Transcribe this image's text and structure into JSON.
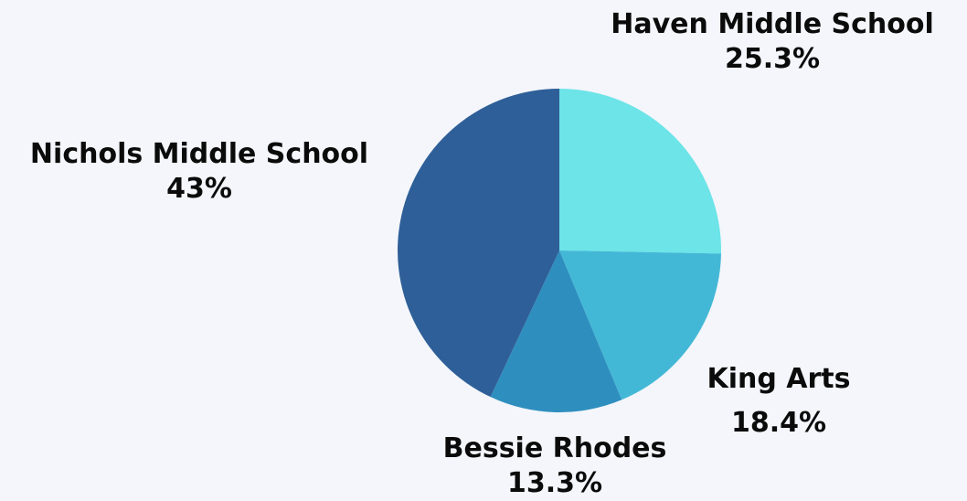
{
  "chart_data": {
    "type": "pie",
    "title": "",
    "slices": [
      {
        "name": "Haven Middle School",
        "value": 25.3,
        "label": "25.3%",
        "color": "#6ce4e8"
      },
      {
        "name": "King Arts",
        "value": 18.4,
        "label": "18.4%",
        "color": "#43b8d6"
      },
      {
        "name": "Bessie Rhodes",
        "value": 13.3,
        "label": "13.3%",
        "color": "#2e8fbf"
      },
      {
        "name": "Nichols Middle School",
        "value": 43.0,
        "label": "43%",
        "color": "#2e5f98"
      }
    ],
    "start_angle": "12 o'clock",
    "direction": "clockwise",
    "legend": "none",
    "background": "#f4f6fb"
  }
}
